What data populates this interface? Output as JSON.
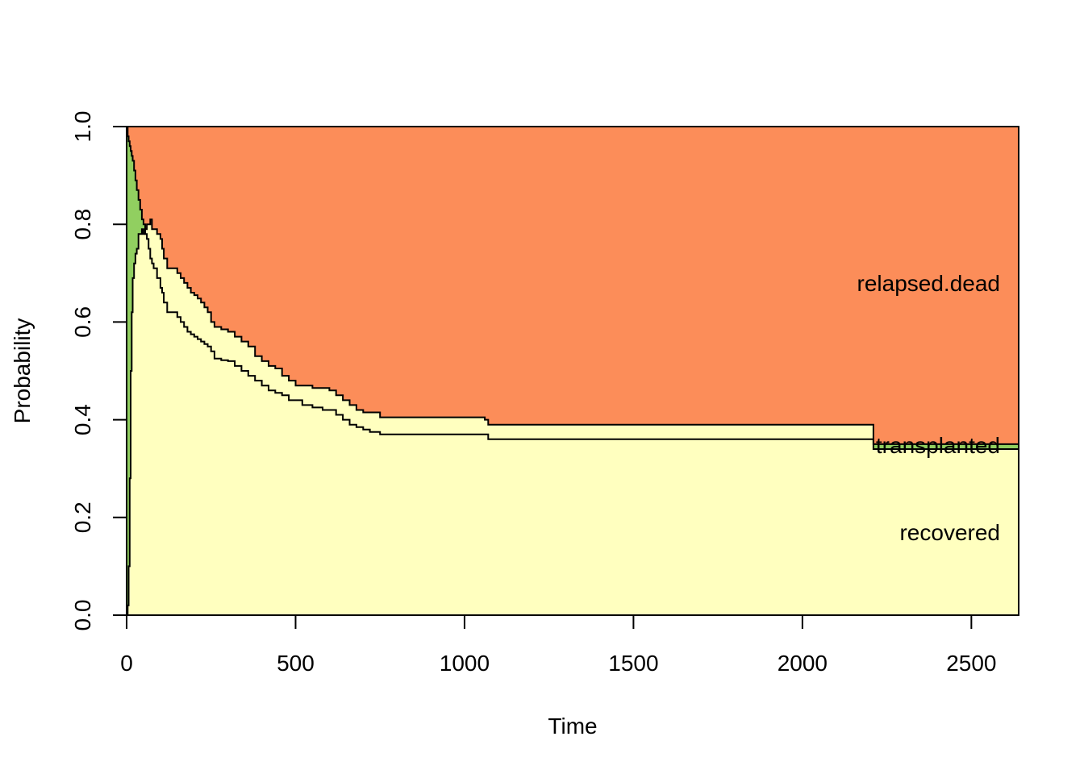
{
  "chart_data": {
    "type": "area",
    "xlabel": "Time",
    "ylabel": "Probability",
    "xlim": [
      0,
      2640
    ],
    "ylim": [
      0,
      1
    ],
    "x_ticks": [
      0,
      500,
      1000,
      1500,
      2000,
      2500
    ],
    "y_ticks": [
      0.0,
      0.2,
      0.4,
      0.6,
      0.8,
      1.0
    ],
    "x_tick_labels": [
      "0",
      "500",
      "1000",
      "1500",
      "2000",
      "2500"
    ],
    "y_tick_labels": [
      "0.0",
      "0.2",
      "0.4",
      "0.6",
      "0.8",
      "1.0"
    ],
    "grid": false,
    "legend": "inline labels at right",
    "colors": {
      "recovered": "#FFFFBF",
      "transplanted": "#91CF60",
      "relapsed.dead": "#FC8D59",
      "stroke": "#000000"
    },
    "stack_label": {
      "lower": "recovered",
      "middle": "transplanted",
      "upper": "relapsed.dead"
    },
    "label_values": {
      "recovered": 0.17,
      "transplanted": 0.348,
      "relapsed.dead": 0.68
    },
    "x": [
      0,
      3,
      6,
      9,
      12,
      15,
      18,
      22,
      26,
      30,
      35,
      40,
      45,
      50,
      55,
      60,
      65,
      70,
      75,
      80,
      90,
      100,
      105,
      110,
      120,
      130,
      150,
      160,
      170,
      180,
      190,
      200,
      210,
      220,
      230,
      240,
      250,
      260,
      270,
      280,
      300,
      320,
      340,
      360,
      380,
      400,
      420,
      440,
      460,
      480,
      500,
      520,
      550,
      580,
      600,
      620,
      640,
      660,
      680,
      700,
      720,
      750,
      800,
      1000,
      1060,
      1070,
      1100,
      1500,
      2000,
      2200,
      2210,
      2640
    ],
    "series": [
      {
        "name": "recovered",
        "values": [
          0.0,
          0.02,
          0.1,
          0.28,
          0.5,
          0.62,
          0.69,
          0.72,
          0.74,
          0.75,
          0.78,
          0.78,
          0.79,
          0.78,
          0.79,
          0.8,
          0.8,
          0.81,
          0.79,
          0.79,
          0.78,
          0.77,
          0.75,
          0.73,
          0.71,
          0.71,
          0.7,
          0.69,
          0.68,
          0.67,
          0.66,
          0.655,
          0.648,
          0.64,
          0.63,
          0.62,
          0.6,
          0.59,
          0.59,
          0.585,
          0.58,
          0.57,
          0.56,
          0.55,
          0.53,
          0.52,
          0.51,
          0.505,
          0.49,
          0.48,
          0.47,
          0.47,
          0.465,
          0.465,
          0.46,
          0.45,
          0.44,
          0.43,
          0.42,
          0.415,
          0.415,
          0.405,
          0.405,
          0.405,
          0.4,
          0.39,
          0.39,
          0.39,
          0.39,
          0.39,
          0.34,
          0.34
        ]
      },
      {
        "name": "transplanted",
        "values": [
          1.0,
          0.98,
          0.97,
          0.96,
          0.95,
          0.94,
          0.93,
          0.91,
          0.89,
          0.87,
          0.85,
          0.83,
          0.81,
          0.8,
          0.78,
          0.77,
          0.75,
          0.73,
          0.72,
          0.71,
          0.69,
          0.67,
          0.66,
          0.64,
          0.62,
          0.62,
          0.61,
          0.6,
          0.59,
          0.58,
          0.575,
          0.57,
          0.565,
          0.56,
          0.555,
          0.55,
          0.54,
          0.525,
          0.525,
          0.522,
          0.52,
          0.51,
          0.5,
          0.49,
          0.48,
          0.47,
          0.46,
          0.455,
          0.45,
          0.44,
          0.44,
          0.43,
          0.425,
          0.42,
          0.42,
          0.41,
          0.4,
          0.39,
          0.385,
          0.38,
          0.375,
          0.37,
          0.37,
          0.37,
          0.37,
          0.36,
          0.36,
          0.36,
          0.36,
          0.36,
          0.35,
          0.35
        ]
      }
    ]
  }
}
